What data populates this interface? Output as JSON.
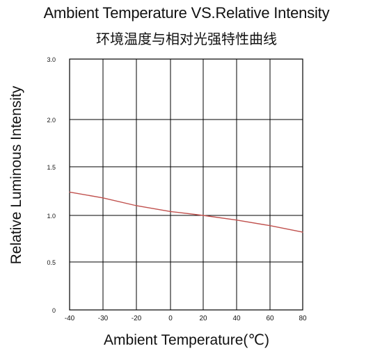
{
  "chart_data": {
    "type": "line",
    "title": "Ambient Temperature VS.Relative Intensity",
    "subtitle": "环境温度与相对光强特性曲线",
    "xlabel": "Ambient Temperature(℃)",
    "ylabel": "Relative Luminous Intensity",
    "xlim": [
      -40,
      80
    ],
    "x_ticks": [
      "-40",
      "-30",
      "-20",
      "0",
      "20",
      "40",
      "60",
      "80"
    ],
    "y_ticks": [
      {
        "value": 0,
        "label": "0"
      },
      {
        "value": 0.5,
        "label": "0.5"
      },
      {
        "value": 1.0,
        "label": "1.0"
      },
      {
        "value": 1.5,
        "label": "1.5"
      },
      {
        "value": 2.0,
        "label": "2.0"
      },
      {
        "value": 3.0,
        "label": "3.0"
      }
    ],
    "grid": true,
    "series": [
      {
        "color": "#c0504d",
        "points": [
          {
            "x": -40,
            "y": 1.24
          },
          {
            "x": -30,
            "y": 1.18
          },
          {
            "x": -20,
            "y": 1.1
          },
          {
            "x": 0,
            "y": 1.04
          },
          {
            "x": 20,
            "y": 1.0
          },
          {
            "x": 40,
            "y": 0.95
          },
          {
            "x": 60,
            "y": 0.89
          },
          {
            "x": 80,
            "y": 0.82
          }
        ]
      }
    ]
  }
}
